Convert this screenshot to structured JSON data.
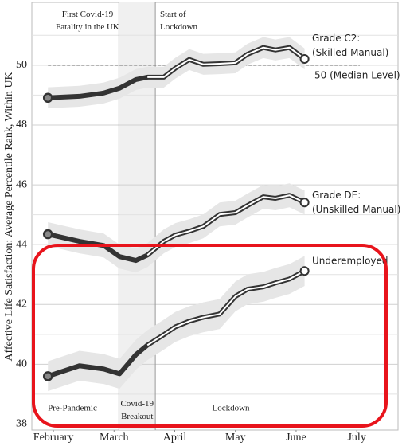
{
  "chart_data": {
    "type": "line",
    "y_label": "Affective Life Satisfaction: Average Percentile Rank, Within UK",
    "x": [
      1.91,
      2.43,
      2.83,
      3.09,
      3.36,
      3.55,
      3.82,
      4.01,
      4.24,
      4.47,
      4.74,
      5.0,
      5.2,
      5.46,
      5.66,
      5.89,
      6.14
    ],
    "xlim": [
      1.645,
      7.68
    ],
    "xticks": [
      {
        "value": 2,
        "label": "February"
      },
      {
        "value": 3,
        "label": "March"
      },
      {
        "value": 4,
        "label": "April"
      },
      {
        "value": 5,
        "label": "May"
      },
      {
        "value": 6,
        "label": "June"
      },
      {
        "value": 7,
        "label": "July"
      }
    ],
    "ylim": [
      37.8,
      52.1
    ],
    "yticks": [
      38,
      40,
      42,
      44,
      46,
      48,
      50
    ],
    "y_minor_grid": [
      39,
      41,
      43,
      45,
      47,
      49,
      51
    ],
    "grid": true,
    "reference_line": {
      "value": 50,
      "label": "50 (Median Level)",
      "color": "#888888"
    },
    "events": [
      {
        "x": 3.08,
        "label": "First Covid-19\nFatality in the UK"
      },
      {
        "x": 3.68,
        "label": "Start of\nLockdown"
      }
    ],
    "periods": [
      "Pre-Pandemic",
      "Covid-19\nBreakout",
      "Lockdown"
    ],
    "series": [
      {
        "name": "Grade C2:\n(Skilled Manual)",
        "color": "#333333",
        "band_color": "#e6e6e6",
        "values": [
          48.91,
          48.96,
          49.07,
          49.23,
          49.52,
          49.6,
          49.6,
          49.9,
          50.19,
          50.03,
          50.05,
          50.08,
          50.37,
          50.59,
          50.51,
          50.59,
          50.21
        ],
        "lower": [
          48.56,
          48.61,
          48.72,
          48.88,
          49.17,
          49.25,
          49.25,
          49.55,
          49.84,
          49.68,
          49.7,
          49.73,
          50.02,
          50.24,
          50.16,
          50.24,
          49.86
        ],
        "upper": [
          49.26,
          49.31,
          49.42,
          49.58,
          49.87,
          49.95,
          49.95,
          50.25,
          50.54,
          50.38,
          50.4,
          50.43,
          50.72,
          50.94,
          50.86,
          50.94,
          50.56
        ]
      },
      {
        "name": "Grade DE:\n(Unskilled Manual)",
        "color": "#333333",
        "band_color": "#e6e6e6",
        "values": [
          44.35,
          44.11,
          43.97,
          43.6,
          43.47,
          43.65,
          44.11,
          44.32,
          44.45,
          44.61,
          45.01,
          45.07,
          45.31,
          45.6,
          45.55,
          45.65,
          45.41
        ],
        "lower": [
          43.95,
          43.71,
          43.57,
          43.2,
          43.07,
          43.25,
          43.71,
          43.92,
          44.05,
          44.21,
          44.61,
          44.67,
          44.91,
          45.2,
          45.15,
          45.25,
          45.01
        ],
        "upper": [
          44.75,
          44.51,
          44.37,
          44.0,
          43.87,
          44.05,
          44.51,
          44.72,
          44.85,
          45.01,
          45.41,
          45.47,
          45.71,
          46.0,
          45.95,
          46.05,
          45.81
        ]
      },
      {
        "name": "Underemployed",
        "color": "#333333",
        "band_color": "#e6e6e6",
        "values": [
          39.6,
          39.95,
          39.84,
          39.68,
          40.32,
          40.64,
          40.99,
          41.25,
          41.44,
          41.57,
          41.68,
          42.27,
          42.51,
          42.59,
          42.72,
          42.85,
          43.12
        ],
        "lower": [
          39.1,
          39.45,
          39.34,
          39.18,
          39.82,
          40.14,
          40.49,
          40.75,
          40.94,
          41.07,
          41.18,
          41.77,
          42.01,
          42.09,
          42.22,
          42.35,
          42.62
        ],
        "upper": [
          40.1,
          40.45,
          40.34,
          40.18,
          40.82,
          41.14,
          41.49,
          41.75,
          41.94,
          42.07,
          42.18,
          42.77,
          43.01,
          43.09,
          43.22,
          43.35,
          43.62
        ]
      }
    ]
  }
}
